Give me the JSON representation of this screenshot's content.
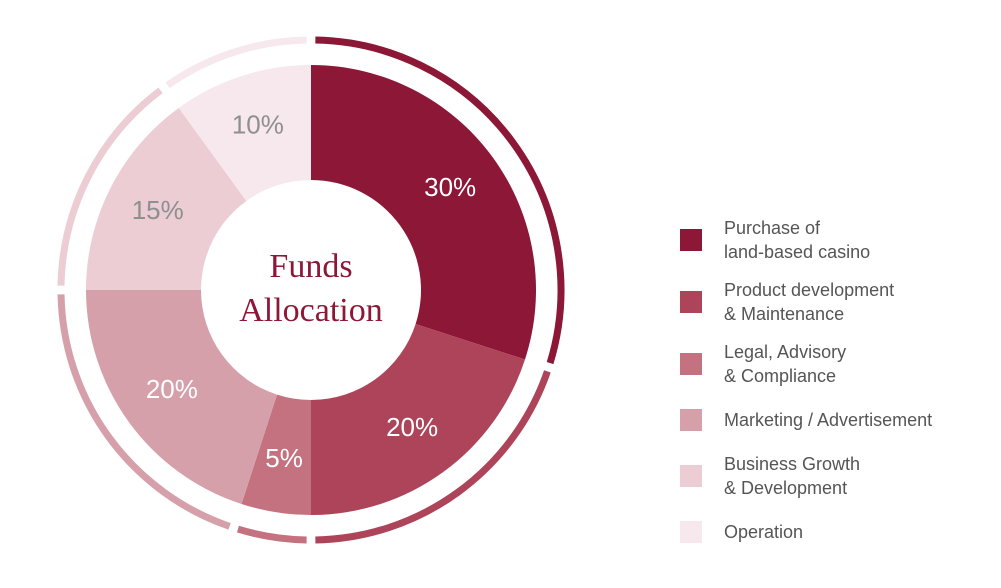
{
  "chart_data": {
    "type": "pie",
    "title": "Funds\nAllocation",
    "categories": [
      "Purchase of\nland-based casino",
      "Product development\n& Maintenance",
      "Legal, Advisory\n& Compliance",
      "Marketing / Advertisement",
      "Business Growth\n& Development",
      "Operation"
    ],
    "values": [
      30,
      20,
      5,
      20,
      15,
      10
    ],
    "value_labels": [
      "30%",
      "20%",
      "5%",
      "20%",
      "15%",
      "10%"
    ],
    "colors": [
      "#8c1737",
      "#ad4459",
      "#c4727f",
      "#d6a0ab",
      "#ebcdd3",
      "#f6e8ec"
    ],
    "label_colors": [
      "#ffffff",
      "#ffffff",
      "#ffffff",
      "#ffffff",
      "#8f8f8f",
      "#8f8f8f"
    ]
  }
}
